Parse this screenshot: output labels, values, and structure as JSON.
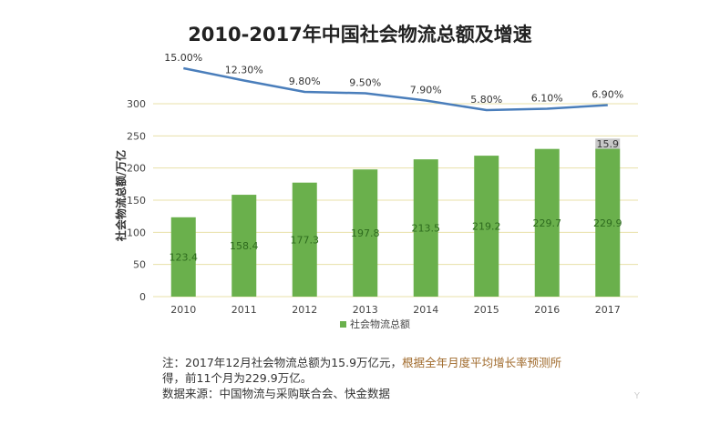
{
  "title": "2010-2017年中国社会物流总额及增速",
  "notes": {
    "line1_a": "注：2017年12月社会物流总额为15.9万亿元，",
    "line1_b": "根据全年月度平均增长率预测所",
    "line2": "得，前11个月为229.9万亿。",
    "source": "数据来源：中国物流与采购联合会、快金数据"
  },
  "watermark": "Y",
  "chart_data": {
    "type": "bar",
    "categories": [
      "2010",
      "2011",
      "2012",
      "2013",
      "2014",
      "2015",
      "2016",
      "2017"
    ],
    "series": [
      {
        "name": "社会物流总额",
        "values": [
          123.4,
          158.4,
          177.3,
          197.8,
          213.5,
          219.2,
          229.7,
          229.9
        ],
        "color": "#6ab04c"
      },
      {
        "name": "",
        "values": [
          null,
          null,
          null,
          null,
          null,
          null,
          null,
          15.9
        ],
        "color": "#c8c8c8",
        "stacked": true
      }
    ],
    "value_labels": [
      "123.4",
      "158.4",
      "177.3",
      "197.8",
      "213.5",
      "219.2",
      "229.7",
      "229.9"
    ],
    "stack_label": "15.9",
    "growth_line": {
      "values": [
        15.0,
        12.3,
        9.8,
        9.5,
        7.9,
        5.8,
        6.1,
        6.9
      ],
      "labels": [
        "15.00%",
        "12.30%",
        "9.80%",
        "9.50%",
        "7.90%",
        "5.80%",
        "6.10%",
        "6.90%"
      ],
      "color": "#4a7ebb"
    },
    "ylabel": "社会物流总额/万亿",
    "ylim": [
      0,
      300
    ],
    "yticks": [
      "0",
      "50",
      "100",
      "150",
      "200",
      "250",
      "300"
    ],
    "legend": "社会物流总额",
    "legend_position": "bottom",
    "grid": true,
    "colors": {
      "bar": "#6ab04c",
      "stack": "#c8c8c8",
      "grid": "#e8e0a8",
      "line": "#4a7ebb"
    }
  }
}
